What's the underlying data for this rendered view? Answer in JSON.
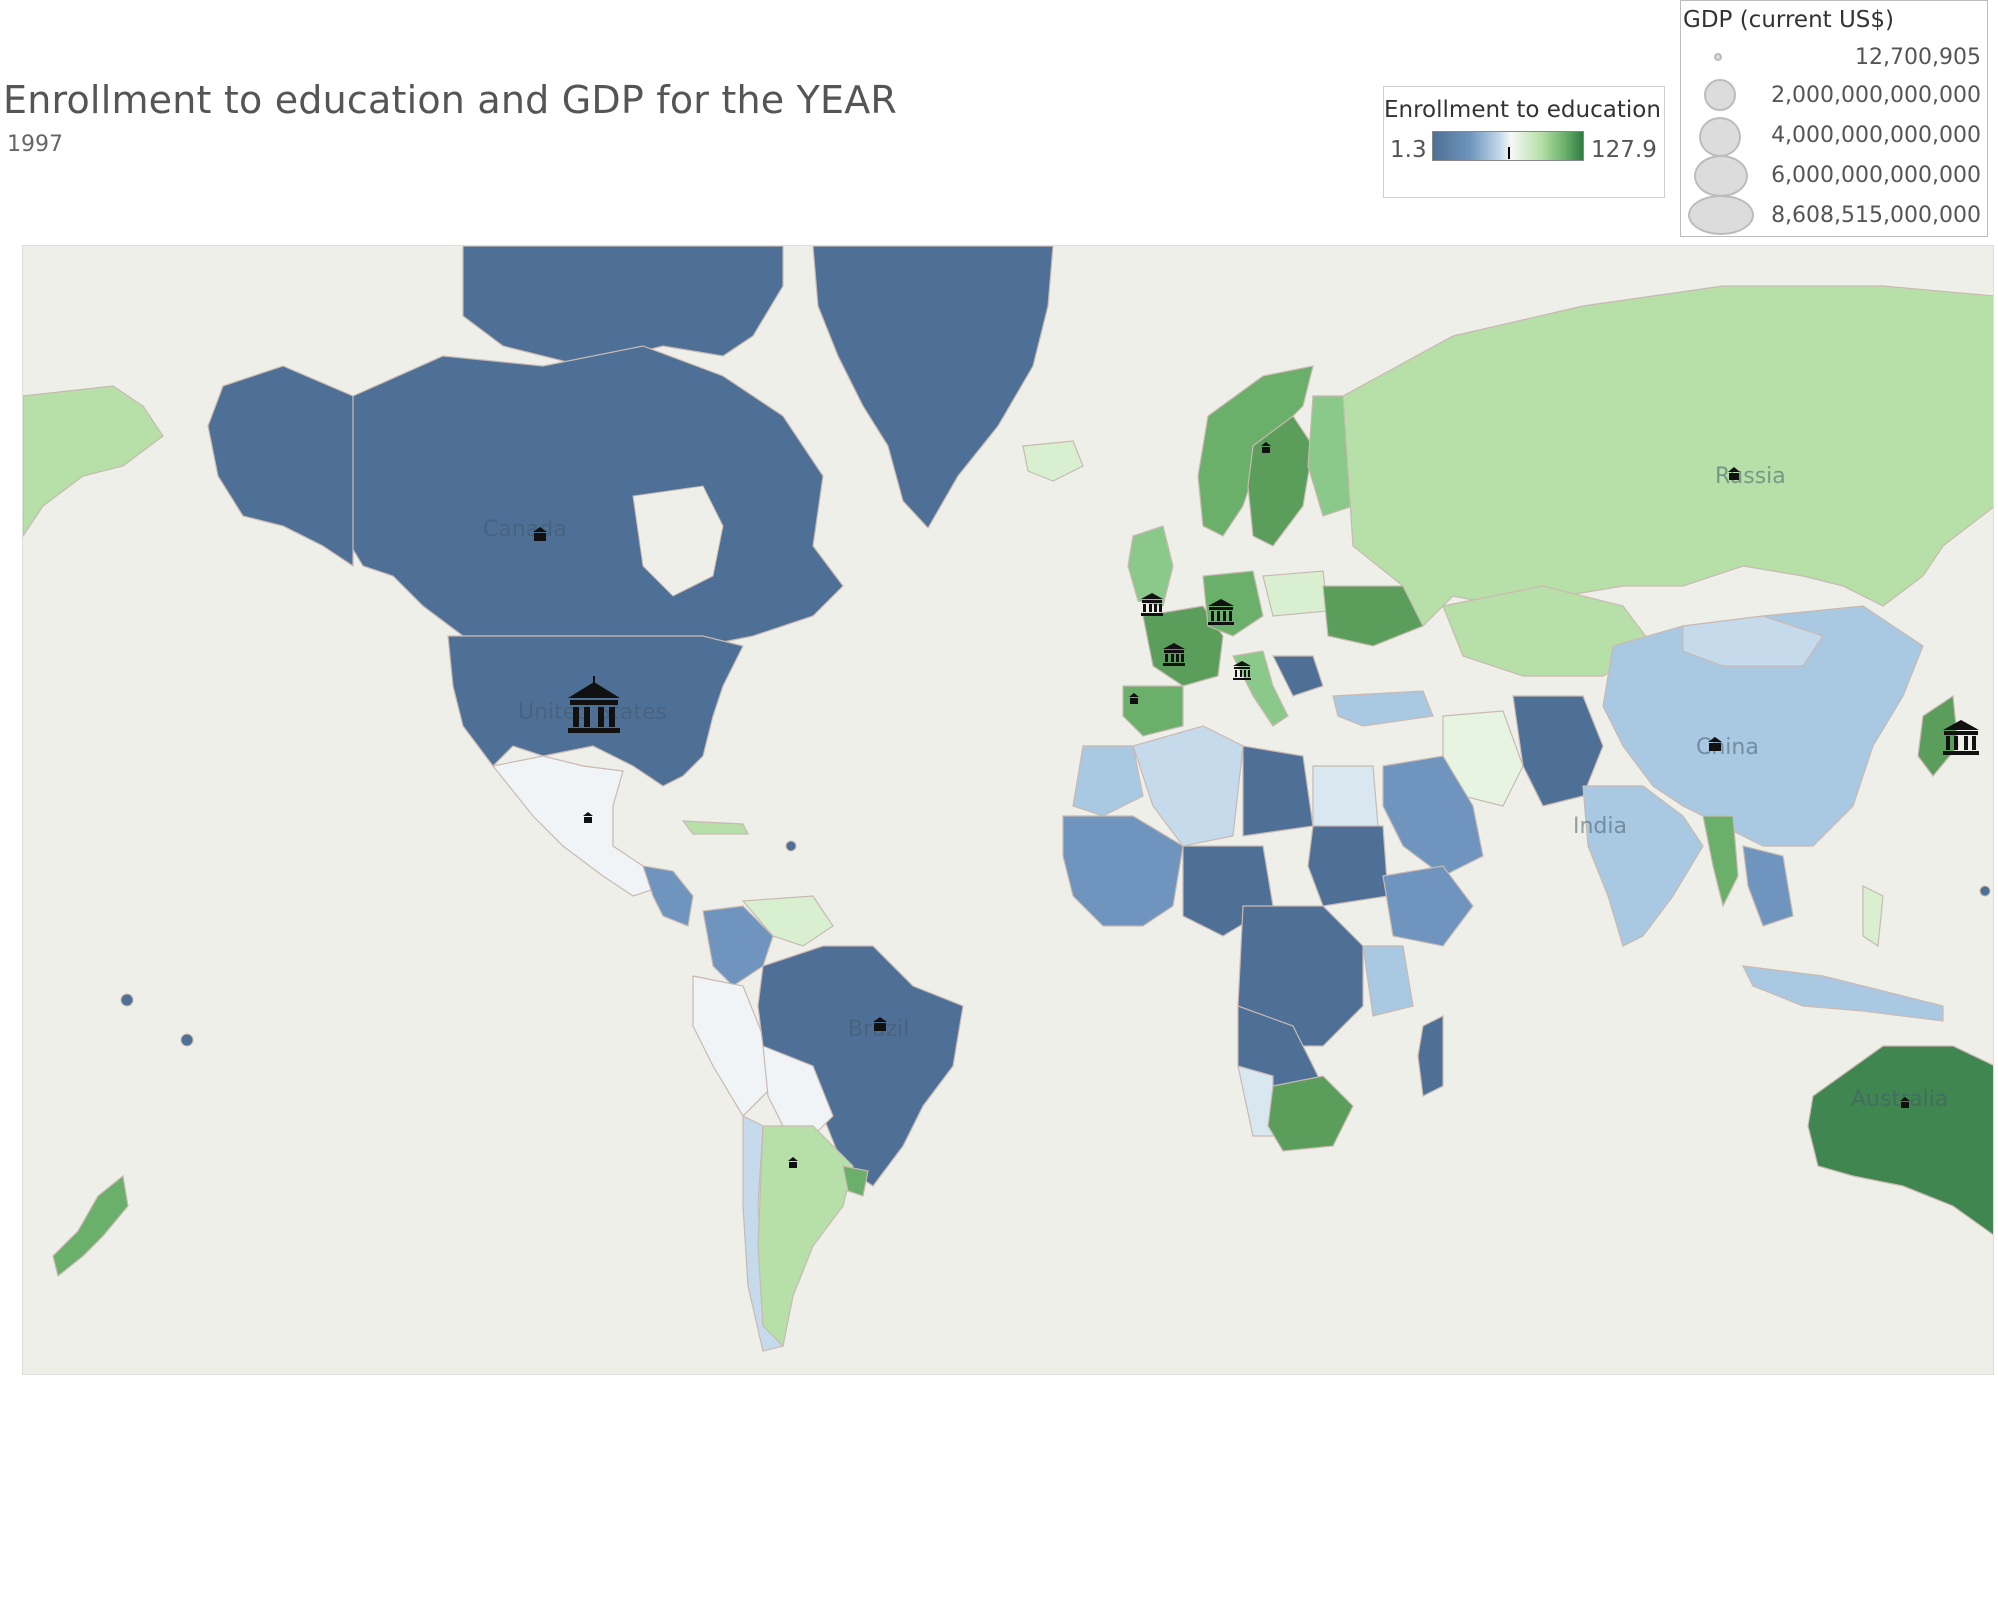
{
  "header": {
    "title": "Enrollment to education and GDP for the YEAR",
    "subtitle": "1997"
  },
  "legend_enrollment": {
    "title": "Enrollment to education",
    "min": "1.3",
    "max": "127.9",
    "colors": [
      "#4e6f93",
      "#f7f7f7",
      "#2f7a42"
    ]
  },
  "legend_gdp": {
    "title": "GDP (current US$)",
    "entries": [
      {
        "label": "12,700,905",
        "value": 12700905
      },
      {
        "label": "2,000,000,000,000",
        "value": 2000000000000
      },
      {
        "label": "4,000,000,000,000",
        "value": 4000000000000
      },
      {
        "label": "6,000,000,000,000",
        "value": 6000000000000
      },
      {
        "label": "8,608,515,000,000",
        "value": 8608515000000
      }
    ]
  },
  "map": {
    "ocean_color": "#efefe9",
    "labels": [
      "Canada",
      "United States",
      "Brazil",
      "Russia",
      "China",
      "India",
      "Australia"
    ],
    "markers_icon": "bank-building-icon"
  }
}
